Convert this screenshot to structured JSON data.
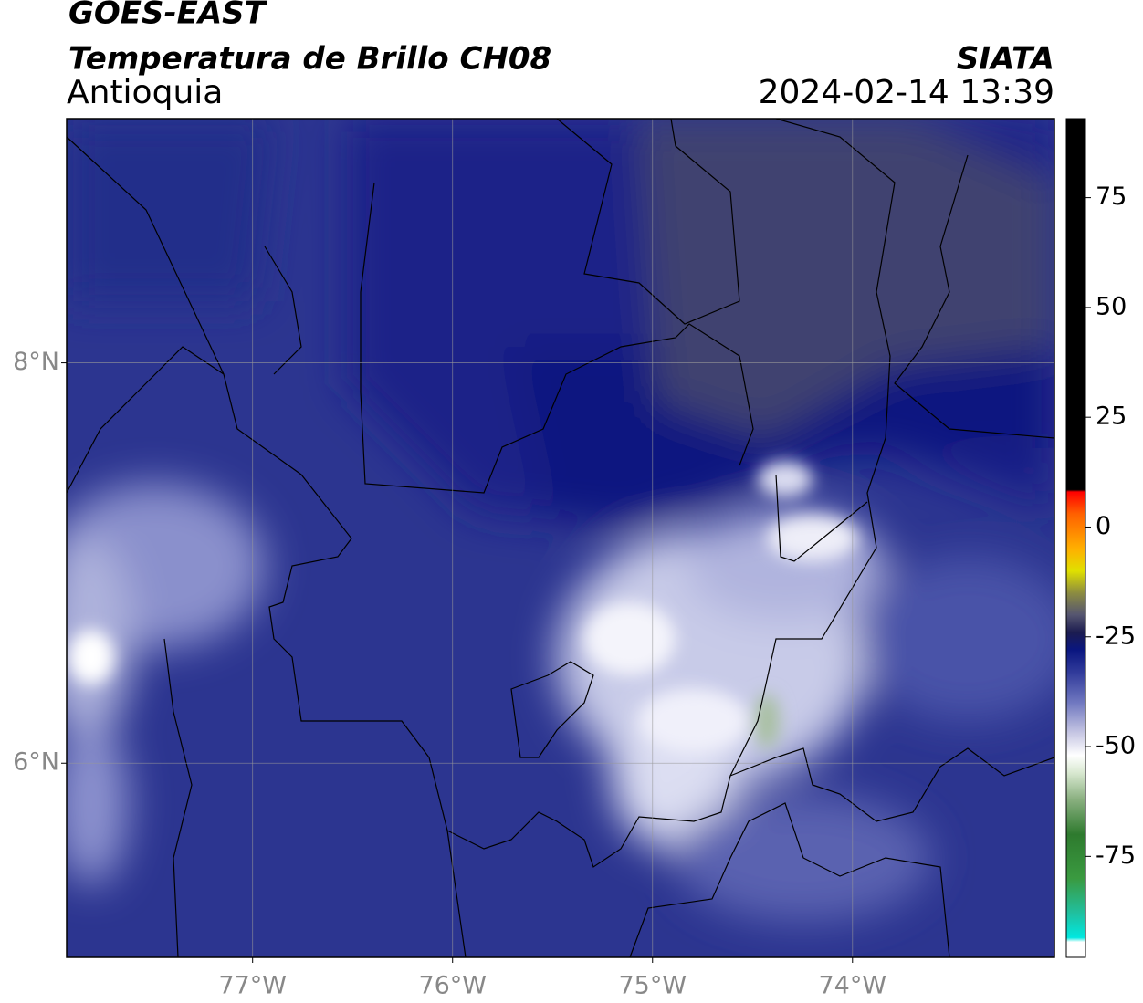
{
  "header": {
    "title": "GOES-EAST",
    "subtitle": "Temperatura de Brillo CH08",
    "region": "Antioquia",
    "agency": "SIATA",
    "datetime": "2024-02-14 13:39"
  },
  "map": {
    "xlim": [
      -77.93,
      -72.99
    ],
    "ylim": [
      5.03,
      9.22
    ],
    "xticks": [
      {
        "value": -77,
        "label": "77°W"
      },
      {
        "value": -76,
        "label": "76°W"
      },
      {
        "value": -75,
        "label": "75°W"
      },
      {
        "value": -74,
        "label": "74°W"
      }
    ],
    "yticks": [
      {
        "value": 8,
        "label": "8°N"
      },
      {
        "value": 6,
        "label": "6°N"
      }
    ],
    "grid": true
  },
  "colorbar": {
    "range": [
      -98,
      93
    ],
    "ticks": [
      75,
      50,
      25,
      0,
      -25,
      -50,
      -75
    ],
    "stops": [
      {
        "value": -98,
        "color": "#ffffff"
      },
      {
        "value": -94.5,
        "color": "#ffffff"
      },
      {
        "value": -93.5,
        "color": "#00e8e0"
      },
      {
        "value": -88,
        "color": "#20c0a0"
      },
      {
        "value": -80,
        "color": "#3a9a40"
      },
      {
        "value": -70,
        "color": "#2e7a2e"
      },
      {
        "value": -62,
        "color": "#8ab080"
      },
      {
        "value": -56,
        "color": "#d8e8d0"
      },
      {
        "value": -52,
        "color": "#ffffff"
      },
      {
        "value": -47,
        "color": "#c8c8e4"
      },
      {
        "value": -40,
        "color": "#7078c0"
      },
      {
        "value": -33,
        "color": "#303a9a"
      },
      {
        "value": -28,
        "color": "#0a1680"
      },
      {
        "value": -24,
        "color": "#1c1c50"
      },
      {
        "value": -20,
        "color": "#555570"
      },
      {
        "value": -15,
        "color": "#8c8c40"
      },
      {
        "value": -10,
        "color": "#e0e000"
      },
      {
        "value": -5,
        "color": "#ffb000"
      },
      {
        "value": 3,
        "color": "#ff6000"
      },
      {
        "value": 8,
        "color": "#ff0000"
      },
      {
        "value": 8.5,
        "color": "#000000"
      },
      {
        "value": 93,
        "color": "#000000"
      }
    ]
  }
}
